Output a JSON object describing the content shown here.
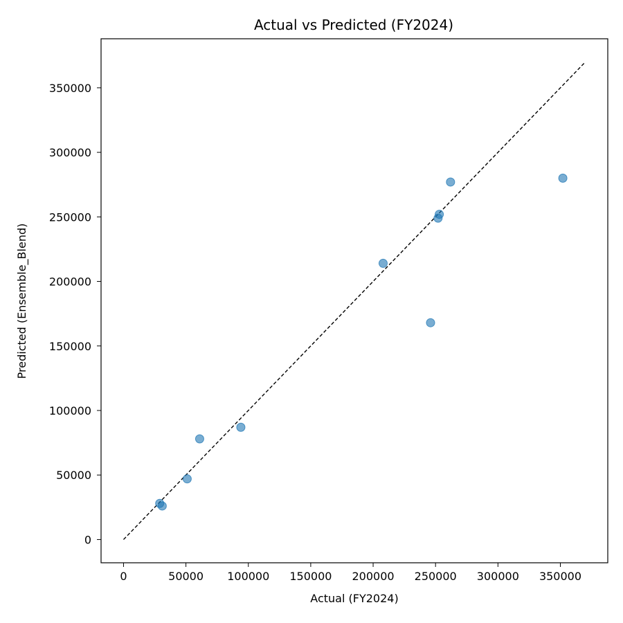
{
  "chart_data": {
    "type": "scatter",
    "title": "Actual vs Predicted (FY2024)",
    "xlabel": "Actual (FY2024)",
    "ylabel": "Predicted (Ensemble_Blend)",
    "xlim": [
      -18000,
      388000
    ],
    "ylim": [
      -18000,
      388000
    ],
    "xticks": [
      0,
      50000,
      100000,
      150000,
      200000,
      250000,
      300000,
      350000
    ],
    "yticks": [
      0,
      50000,
      100000,
      150000,
      200000,
      250000,
      300000,
      350000
    ],
    "xtick_labels": [
      "0",
      "50000",
      "100000",
      "150000",
      "200000",
      "250000",
      "300000",
      "350000"
    ],
    "ytick_labels": [
      "0",
      "50000",
      "100000",
      "150000",
      "200000",
      "250000",
      "300000",
      "350000"
    ],
    "grid": false,
    "reference_line": {
      "style": "dashed",
      "color": "#000000",
      "from": [
        0,
        0
      ],
      "to": [
        370000,
        370000
      ]
    },
    "point_color": "#1f77b4",
    "points": [
      {
        "x": 29000,
        "y": 28000
      },
      {
        "x": 31000,
        "y": 26000
      },
      {
        "x": 51000,
        "y": 47000
      },
      {
        "x": 61000,
        "y": 78000
      },
      {
        "x": 94000,
        "y": 87000
      },
      {
        "x": 208000,
        "y": 214000
      },
      {
        "x": 246000,
        "y": 168000
      },
      {
        "x": 252000,
        "y": 249000
      },
      {
        "x": 253000,
        "y": 252000
      },
      {
        "x": 262000,
        "y": 277000
      },
      {
        "x": 352000,
        "y": 280000
      }
    ]
  }
}
